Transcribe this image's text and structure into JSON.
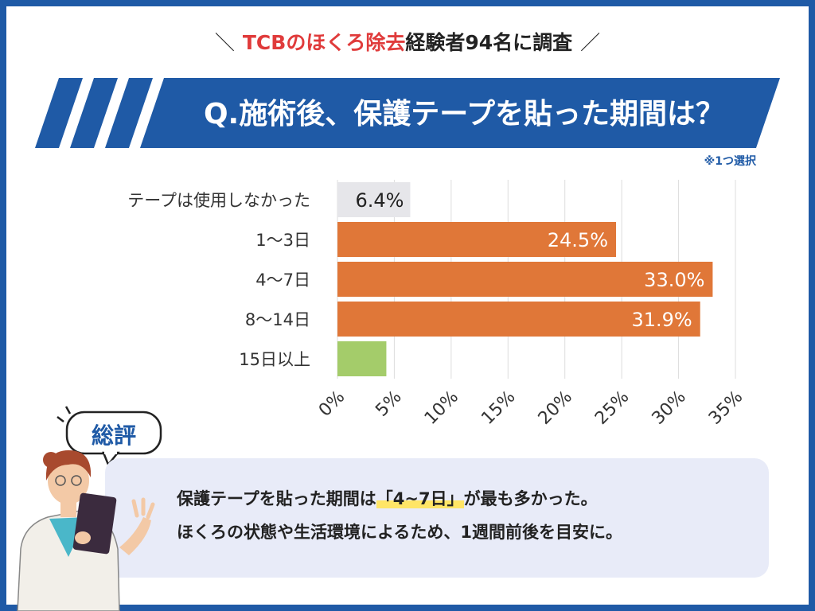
{
  "survey_title": {
    "slash_left": "＼",
    "highlight": "TCBのほくろ除去",
    "rest": "経験者94名に調査",
    "slash_right": "／"
  },
  "question": "Q.施術後、保護テープを貼った期間は？",
  "note": "※1つ選択",
  "colors": {
    "brand": "#1f5aa6",
    "accent": "#e03b3b",
    "bar_gray": "#e6e6ea",
    "bar_orange": "#e07738",
    "bar_green": "#a4cc6a",
    "panel": "#e8ebf8",
    "highlight": "#ffe566"
  },
  "chart_data": {
    "type": "bar",
    "orientation": "horizontal",
    "categories": [
      "テープは使用しなかった",
      "1〜3日",
      "4〜7日",
      "8〜14日",
      "15日以上"
    ],
    "values": [
      6.4,
      24.5,
      33.0,
      31.9,
      4.3
    ],
    "value_labels": [
      "6.4%",
      "24.5%",
      "33.0%",
      "31.9%",
      ""
    ],
    "bar_colors": [
      "#e6e6ea",
      "#e07738",
      "#e07738",
      "#e07738",
      "#a4cc6a"
    ],
    "label_colors": [
      "#222222",
      "#ffffff",
      "#ffffff",
      "#ffffff",
      "#ffffff"
    ],
    "xlim": [
      0,
      35
    ],
    "xticks": [
      0,
      5,
      10,
      15,
      20,
      25,
      30,
      35
    ],
    "xtick_labels": [
      "0%",
      "5%",
      "10%",
      "15%",
      "20%",
      "25%",
      "30%",
      "35%"
    ],
    "grid": true
  },
  "summary": {
    "heading": "総評",
    "line1_before": "保護テープを貼った期間は",
    "line1_highlight": "「4~7日」",
    "line1_after": "が最も多かった。",
    "line2": "ほくろの状態や生活環境によるため、1週間前後を目安に。"
  }
}
